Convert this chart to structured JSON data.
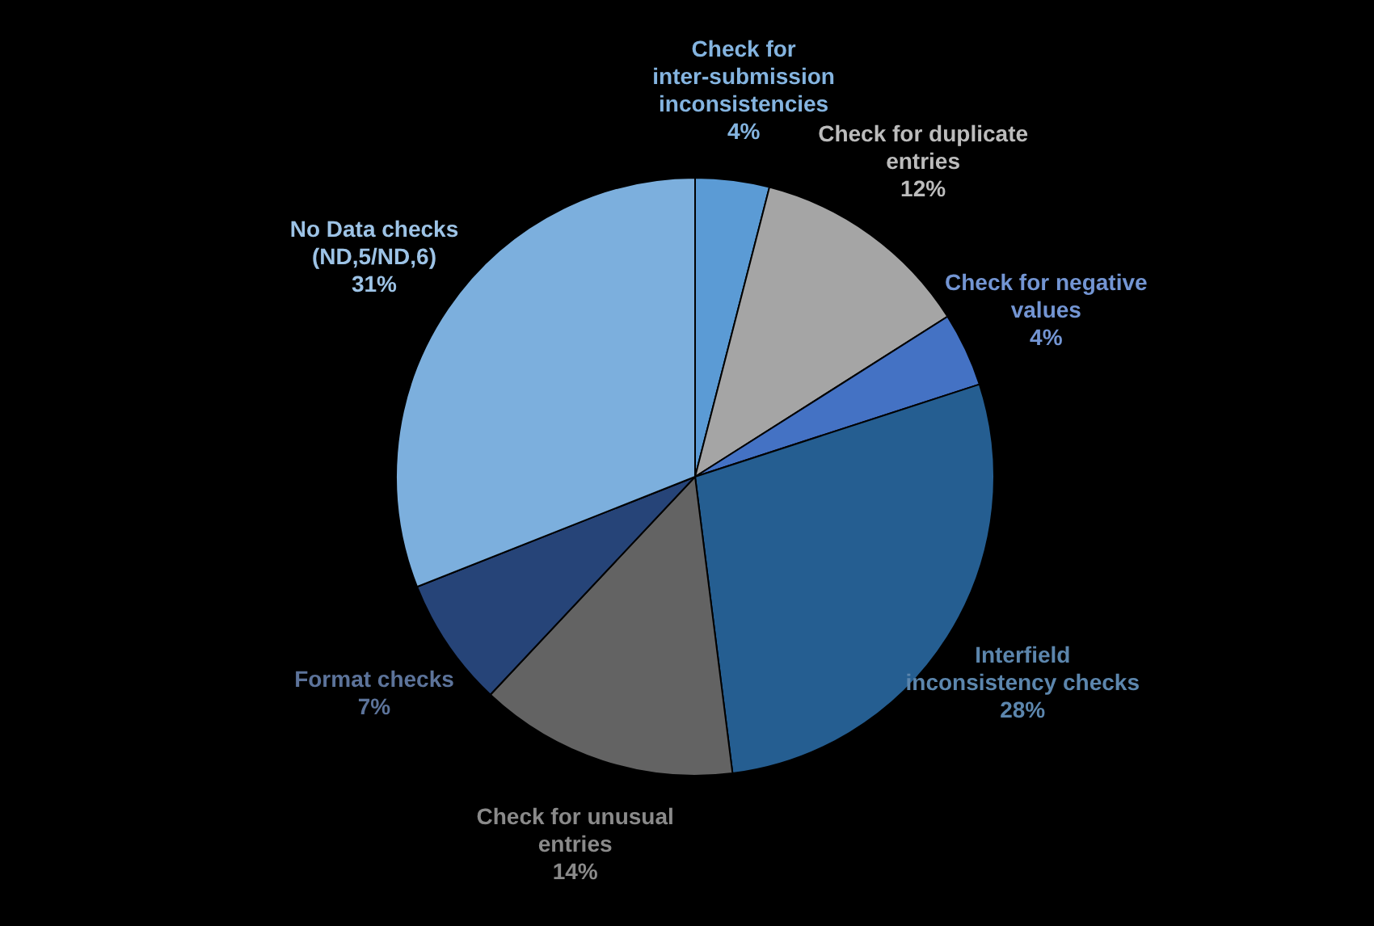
{
  "chart_data": {
    "type": "pie",
    "categories": [
      "Check for inter-submission inconsistencies",
      "Check for duplicate entries",
      "Check for negative values",
      "Interfield inconsistency checks",
      "Check for unusual entries",
      "Format checks",
      "No Data checks (ND,5/ND,6)"
    ],
    "values": [
      4,
      12,
      4,
      28,
      14,
      7,
      31
    ],
    "colors": [
      "#5b9bd5",
      "#a5a5a5",
      "#4472c4",
      "#255e91",
      "#636363",
      "#264478",
      "#7cafdd"
    ],
    "value_labels": [
      "4%",
      "12%",
      "4%",
      "28%",
      "14%",
      "7%",
      "31%"
    ],
    "legend": false
  }
}
